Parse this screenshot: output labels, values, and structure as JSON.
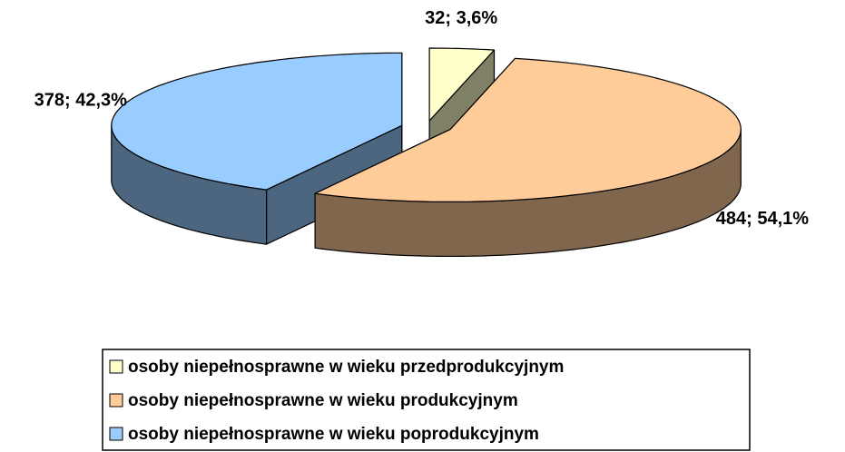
{
  "chart_data": {
    "type": "pie3d",
    "categories": [
      "osoby niepełnosprawne w wieku przedprodukcyjnym",
      "osoby niepełnosprawne w wieku produkcyjnym",
      "osoby niepełnosprawne w wieku poprodukcyjnym"
    ],
    "values": [
      32,
      484,
      378
    ],
    "value_labels": [
      "32; 3,6%",
      "484; 54,1%",
      "378; 42,3%"
    ],
    "colors": [
      "#ffffcc",
      "#ffcc99",
      "#99ccff"
    ],
    "legend": "bottom"
  }
}
